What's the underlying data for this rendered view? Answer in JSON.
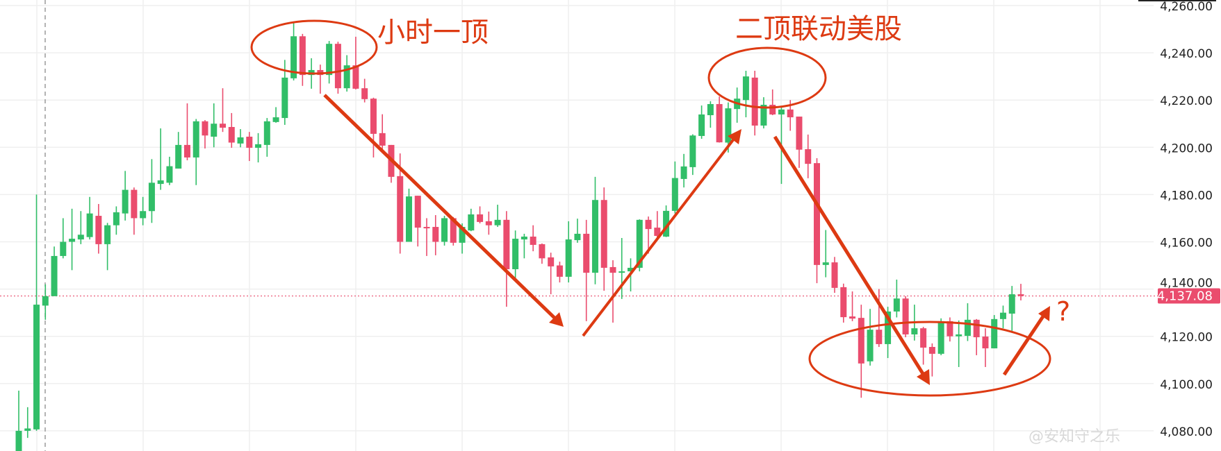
{
  "chart_data": {
    "type": "candlestick",
    "title": "",
    "ylim": [
      4080,
      4260
    ],
    "y_ticks": [
      4260,
      4240,
      4220,
      4200,
      4180,
      4160,
      4140,
      4120,
      4100,
      4080
    ],
    "y_tick_labels": [
      "4,260.00",
      "4,240.00",
      "4,220.00",
      "4,200.00",
      "4,180.00",
      "4,160.00",
      "4,140.00",
      "4,120.00",
      "4,100.00",
      "4,080.00"
    ],
    "grid": true,
    "last_price": 4137.08,
    "last_price_label": "4,137.08",
    "fields": [
      "open",
      "high",
      "low",
      "close"
    ],
    "candles": [
      [
        4062,
        4097,
        4058,
        4080
      ],
      [
        4080,
        4090,
        4077,
        4081
      ],
      [
        4080.6,
        4180,
        4080,
        4133.4
      ],
      [
        4133,
        4142,
        4127,
        4137
      ],
      [
        4137,
        4158,
        4137,
        4154
      ],
      [
        4154,
        4170,
        4153,
        4160
      ],
      [
        4160,
        4174,
        4148,
        4161.3
      ],
      [
        4161,
        4173,
        4159,
        4163
      ],
      [
        4162,
        4179,
        4161,
        4172
      ],
      [
        4171,
        4176,
        4155,
        4159
      ],
      [
        4159,
        4168,
        4148,
        4167
      ],
      [
        4167,
        4175,
        4163,
        4172.5
      ],
      [
        4172,
        4190,
        4169,
        4182
      ],
      [
        4182,
        4183,
        4163,
        4170
      ],
      [
        4170,
        4179,
        4167,
        4173
      ],
      [
        4173,
        4195,
        4168,
        4185
      ],
      [
        4184.5,
        4208,
        4182,
        4186
      ],
      [
        4185,
        4196,
        4184,
        4192
      ],
      [
        4191,
        4206.5,
        4191,
        4201
      ],
      [
        4201,
        4218.6,
        4194.5,
        4195.7
      ],
      [
        4195.7,
        4212,
        4184,
        4211
      ],
      [
        4211,
        4211.5,
        4199.5,
        4205
      ],
      [
        4204.5,
        4218.6,
        4200,
        4210
      ],
      [
        4210,
        4225,
        4206.5,
        4208.3
      ],
      [
        4208.6,
        4214.5,
        4199.8,
        4202
      ],
      [
        4201.6,
        4207.7,
        4200,
        4204.2
      ],
      [
        4204.5,
        4206.5,
        4194.2,
        4199.8
      ],
      [
        4199.8,
        4206,
        4193.6,
        4201.3
      ],
      [
        4201,
        4212.4,
        4196,
        4211
      ],
      [
        4210.7,
        4217,
        4210.4,
        4212.7
      ],
      [
        4212.4,
        4237,
        4209.5,
        4229.5
      ],
      [
        4229.2,
        4252.7,
        4228.3,
        4247
      ],
      [
        4247,
        4248,
        4226,
        4230.6
      ],
      [
        4230.6,
        4237.7,
        4224.8,
        4232.7
      ],
      [
        4232.7,
        4235,
        4222.7,
        4230.6
      ],
      [
        4230.6,
        4245,
        4227,
        4243.8
      ],
      [
        4243.8,
        4244.7,
        4222.7,
        4225
      ],
      [
        4225,
        4239,
        4223.6,
        4234.7
      ],
      [
        4234.7,
        4246.8,
        4224.5,
        4224.8
      ],
      [
        4225,
        4229,
        4219,
        4220.4
      ],
      [
        4220.6,
        4221,
        4195.7,
        4205.7
      ],
      [
        4206,
        4214,
        4198.6,
        4200.7
      ],
      [
        4201,
        4201,
        4185,
        4187.5
      ],
      [
        4187.8,
        4197.4,
        4155,
        4160
      ],
      [
        4160,
        4182.5,
        4160,
        4179.2
      ],
      [
        4179.5,
        4179.5,
        4158,
        4166
      ],
      [
        4166.3,
        4170,
        4154,
        4165.7
      ],
      [
        4166.3,
        4171.3,
        4154.3,
        4160
      ],
      [
        4160,
        4171,
        4158.4,
        4170
      ],
      [
        4170,
        4170.5,
        4158.4,
        4159.6
      ],
      [
        4159.6,
        4167.8,
        4155,
        4166.3
      ],
      [
        4164.8,
        4174,
        4164.5,
        4171.6
      ],
      [
        4171.6,
        4175,
        4167.8,
        4168.4
      ],
      [
        4168.7,
        4172.8,
        4163,
        4167
      ],
      [
        4167,
        4175.7,
        4166.3,
        4169.3
      ],
      [
        4169.3,
        4173,
        4132.5,
        4148.4
      ],
      [
        4148.4,
        4164.8,
        4144.3,
        4161.3
      ],
      [
        4161,
        4163.4,
        4153,
        4162.2
      ],
      [
        4162.2,
        4167,
        4156,
        4158.7
      ],
      [
        4159,
        4159.3,
        4150.7,
        4153
      ],
      [
        4153.4,
        4155.4,
        4137.8,
        4149.6
      ],
      [
        4150,
        4151.6,
        4142.8,
        4145.2
      ],
      [
        4145.2,
        4168.7,
        4142.8,
        4161
      ],
      [
        4160.7,
        4169.8,
        4159.6,
        4163.4
      ],
      [
        4163.4,
        4169.3,
        4126.4,
        4146.9
      ],
      [
        4146.9,
        4187.5,
        4142,
        4177.7
      ],
      [
        4177.7,
        4183,
        4139.3,
        4149
      ],
      [
        4149.3,
        4152.2,
        4125.8,
        4146.9
      ],
      [
        4146.9,
        4161.6,
        4135.8,
        4147.5
      ],
      [
        4147.5,
        4153,
        4139,
        4149
      ],
      [
        4149,
        4169.5,
        4147.5,
        4169.3
      ],
      [
        4169.3,
        4170.7,
        4155,
        4165.4
      ],
      [
        4166,
        4173,
        4161,
        4162.5
      ],
      [
        4162.2,
        4175.4,
        4162,
        4173.1
      ],
      [
        4173.1,
        4194,
        4172,
        4187
      ],
      [
        4186.6,
        4197.2,
        4183,
        4191.9
      ],
      [
        4191.6,
        4205.5,
        4188.3,
        4205
      ],
      [
        4204.8,
        4217.7,
        4203.6,
        4213.9
      ],
      [
        4213.6,
        4219.5,
        4208.3,
        4218.3
      ],
      [
        4218.3,
        4221.5,
        4202,
        4202.1
      ],
      [
        4202,
        4219,
        4197.8,
        4216.5
      ],
      [
        4216.2,
        4225.3,
        4210.4,
        4220.6
      ],
      [
        4220,
        4232.4,
        4212.7,
        4230
      ],
      [
        4229.5,
        4232.4,
        4205,
        4209.2
      ],
      [
        4209.2,
        4221.2,
        4208,
        4218
      ],
      [
        4218,
        4224.5,
        4213.6,
        4213.9
      ],
      [
        4213.9,
        4217,
        4184.5,
        4216
      ],
      [
        4216,
        4220,
        4207,
        4212.7
      ],
      [
        4213,
        4213,
        4191.3,
        4199
      ],
      [
        4199.2,
        4205.4,
        4186.9,
        4193
      ],
      [
        4193.3,
        4195.4,
        4142.5,
        4150.2
      ],
      [
        4150.2,
        4165,
        4145,
        4151.3
      ],
      [
        4151.3,
        4153.6,
        4138.4,
        4140.5
      ],
      [
        4140.8,
        4142.3,
        4125.8,
        4128.1
      ],
      [
        4128.4,
        4139,
        4126.4,
        4127.5
      ],
      [
        4127.8,
        4133.4,
        4094,
        4108.5
      ],
      [
        4109.4,
        4131.6,
        4107.6,
        4122.8
      ],
      [
        4122.8,
        4140,
        4115.5,
        4116.7
      ],
      [
        4116.7,
        4132.5,
        4110.8,
        4130.5
      ],
      [
        4130.5,
        4144,
        4128,
        4136
      ],
      [
        4136,
        4137,
        4119.6,
        4120.8
      ],
      [
        4120.8,
        4133.4,
        4118.2,
        4123.4
      ],
      [
        4123.4,
        4124,
        4108,
        4115.2
      ],
      [
        4115.5,
        4117,
        4103,
        4112.6
      ],
      [
        4112.6,
        4127.6,
        4112,
        4126.4
      ],
      [
        4126.4,
        4128,
        4117.8,
        4120
      ],
      [
        4120,
        4126.7,
        4107,
        4120.8
      ],
      [
        4120.2,
        4134,
        4118,
        4127
      ],
      [
        4127,
        4127.3,
        4112,
        4119.6
      ],
      [
        4119.9,
        4123.4,
        4107,
        4114.9
      ],
      [
        4114.9,
        4129,
        4114.9,
        4127.3
      ],
      [
        4127.3,
        4133,
        4123.4,
        4130
      ],
      [
        4129.6,
        4141.3,
        4122.3,
        4137.8
      ],
      [
        4137.8,
        4142.2,
        4135.2,
        4137.08
      ]
    ],
    "colors": {
      "up": "#31be68",
      "down": "#ea4c6d",
      "grid": "#efefef",
      "annotation": "#dd3a12",
      "last_price": "#ea4c6d"
    },
    "annotations": {
      "label_top_1": "小时一顶",
      "label_top_2": "二顶联动美股",
      "question": "?"
    }
  },
  "watermark": "@安知守之乐"
}
